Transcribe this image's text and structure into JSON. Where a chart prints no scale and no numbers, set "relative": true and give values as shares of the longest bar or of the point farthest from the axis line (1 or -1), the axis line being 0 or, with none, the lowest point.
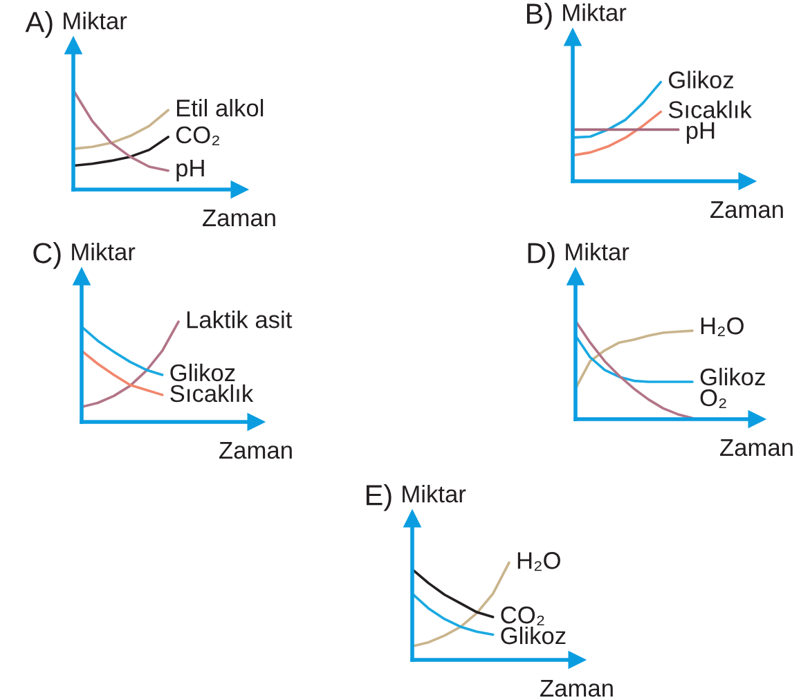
{
  "chart_data": [
    {
      "type": "line",
      "title": "A)",
      "ylabel": "Miktar",
      "xlabel": "Zaman",
      "relative": true,
      "categories": [
        null,
        null,
        null,
        null,
        null,
        null
      ],
      "series": [
        {
          "name": "Etil alkol",
          "color": "#c9b48c",
          "values": [
            0.41,
            0.43,
            0.47,
            0.54,
            0.64,
            0.8
          ]
        },
        {
          "name": "CO₂",
          "color": "#231f20",
          "values": [
            0.24,
            0.26,
            0.29,
            0.33,
            0.4,
            0.53
          ]
        },
        {
          "name": "pH",
          "color": "#b27587",
          "values": [
            1,
            0.69,
            0.47,
            0.33,
            0.23,
            0.19
          ]
        }
      ]
    },
    {
      "type": "line",
      "title": "B)",
      "ylabel": "Miktar",
      "xlabel": "Zaman",
      "relative": true,
      "categories": [
        null,
        null,
        null,
        null,
        null,
        null,
        null
      ],
      "series": [
        {
          "name": "Glikoz",
          "color": "#1aa9e1",
          "values": [
            0.44,
            0.45,
            0.52,
            0.62,
            0.79,
            1,
            null
          ]
        },
        {
          "name": "Sıcaklık",
          "color": "#f1866c",
          "values": [
            0.26,
            0.29,
            0.35,
            0.44,
            0.56,
            0.7,
            null
          ]
        },
        {
          "name": "pH",
          "color": "#a66a7e",
          "values": [
            0.52,
            0.52,
            0.52,
            0.52,
            0.52,
            0.52,
            0.52
          ]
        }
      ]
    },
    {
      "type": "line",
      "title": "C)",
      "ylabel": "Miktar",
      "xlabel": "Zaman",
      "relative": true,
      "categories": [
        null,
        null,
        null,
        null,
        null,
        null,
        null
      ],
      "series": [
        {
          "name": "Laktik asit",
          "color": "#b27587",
          "values": [
            0.15,
            0.19,
            0.26,
            0.36,
            0.51,
            0.71,
            1
          ]
        },
        {
          "name": "Glikoz",
          "color": "#1aa9e1",
          "values": [
            0.95,
            0.81,
            0.7,
            0.6,
            0.52,
            0.47,
            null
          ]
        },
        {
          "name": "Sıcaklık",
          "color": "#f1866c",
          "values": [
            0.71,
            0.58,
            0.47,
            0.37,
            0.32,
            0.27,
            null
          ]
        }
      ]
    },
    {
      "type": "line",
      "title": "D)",
      "ylabel": "Miktar",
      "xlabel": "Zaman",
      "relative": true,
      "categories": [
        null,
        null,
        null,
        null,
        null,
        null,
        null,
        null,
        null
      ],
      "series": [
        {
          "name": "H₂O",
          "color": "#c9b48c",
          "values": [
            0.31,
            0.59,
            0.7,
            0.78,
            0.81,
            0.85,
            0.88,
            0.89,
            0.9
          ]
        },
        {
          "name": "Glikoz",
          "color": "#1aa9e1",
          "values": [
            0.85,
            0.63,
            0.5,
            0.43,
            0.39,
            0.38,
            0.38,
            0.38,
            0.38
          ]
        },
        {
          "name": "O₂",
          "color": "#b27587",
          "values": [
            1,
            0.78,
            0.59,
            0.44,
            0.31,
            0.2,
            0.11,
            0.05,
            0.01
          ]
        }
      ]
    },
    {
      "type": "line",
      "title": "E)",
      "ylabel": "Miktar",
      "xlabel": "Zaman",
      "relative": true,
      "categories": [
        null,
        null,
        null,
        null,
        null,
        null,
        null
      ],
      "series": [
        {
          "name": "H₂O",
          "color": "#c9b48c",
          "values": [
            0.14,
            0.18,
            0.25,
            0.34,
            0.48,
            0.68,
            1
          ]
        },
        {
          "name": "CO₂",
          "color": "#231f20",
          "values": [
            0.93,
            0.79,
            0.67,
            0.58,
            0.49,
            0.44,
            null
          ]
        },
        {
          "name": "Glikoz",
          "color": "#1aa9e1",
          "values": [
            0.68,
            0.53,
            0.42,
            0.34,
            0.29,
            0.26,
            null
          ]
        }
      ]
    }
  ]
}
